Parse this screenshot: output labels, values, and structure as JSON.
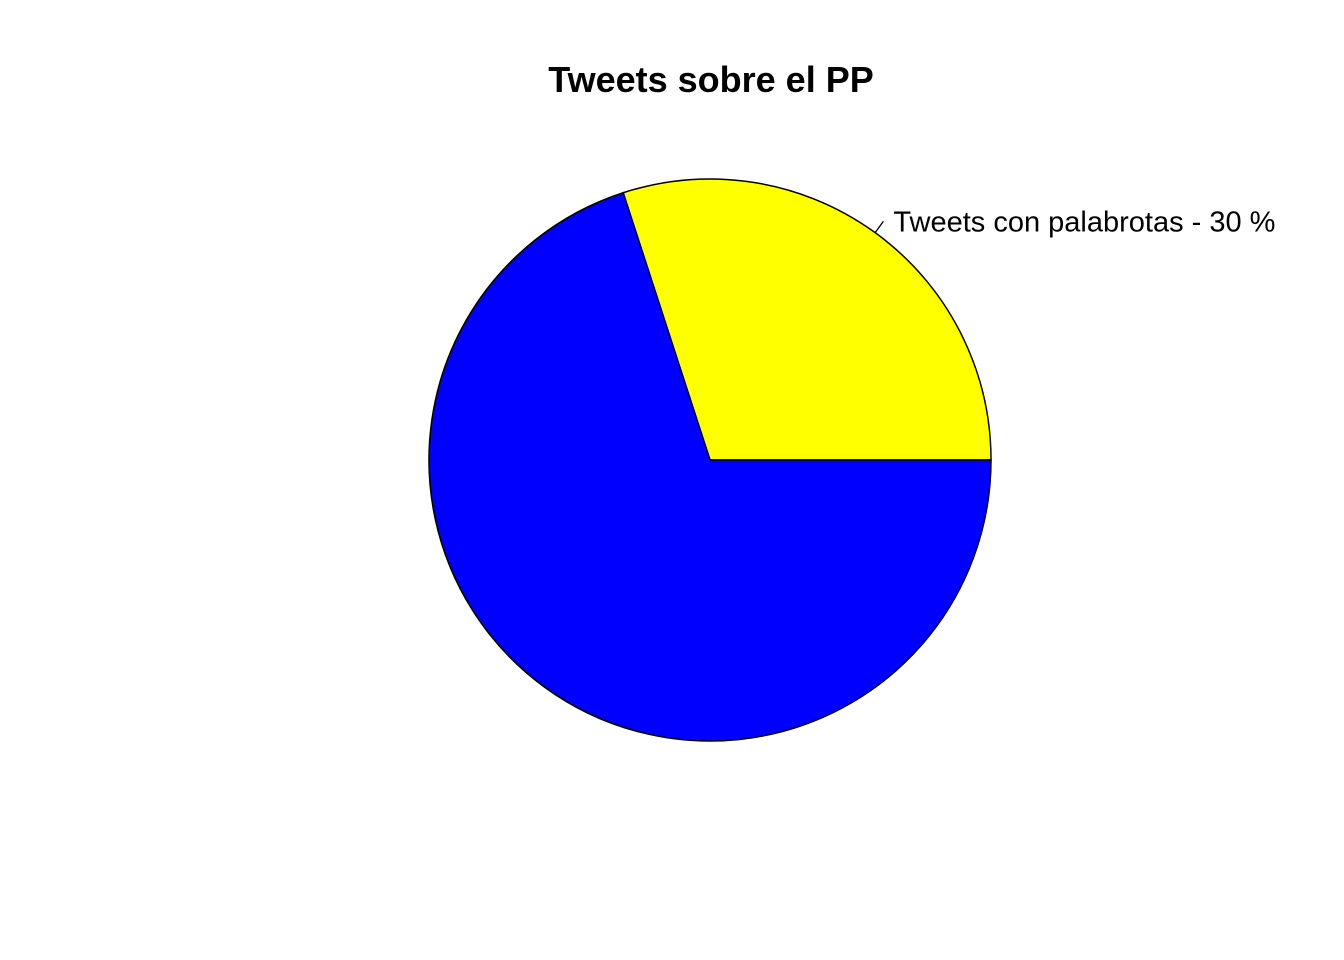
{
  "chart_data": {
    "type": "pie",
    "title": "Tweets sobre el PP",
    "slices": [
      {
        "label": "Tweets con palabrotas -  30 %",
        "value": 30,
        "color": "#FFFF00"
      },
      {
        "label": "",
        "value": 70,
        "color": "#0000FF"
      }
    ],
    "start_angle_deg": 0,
    "direction": "counterclockwise"
  }
}
